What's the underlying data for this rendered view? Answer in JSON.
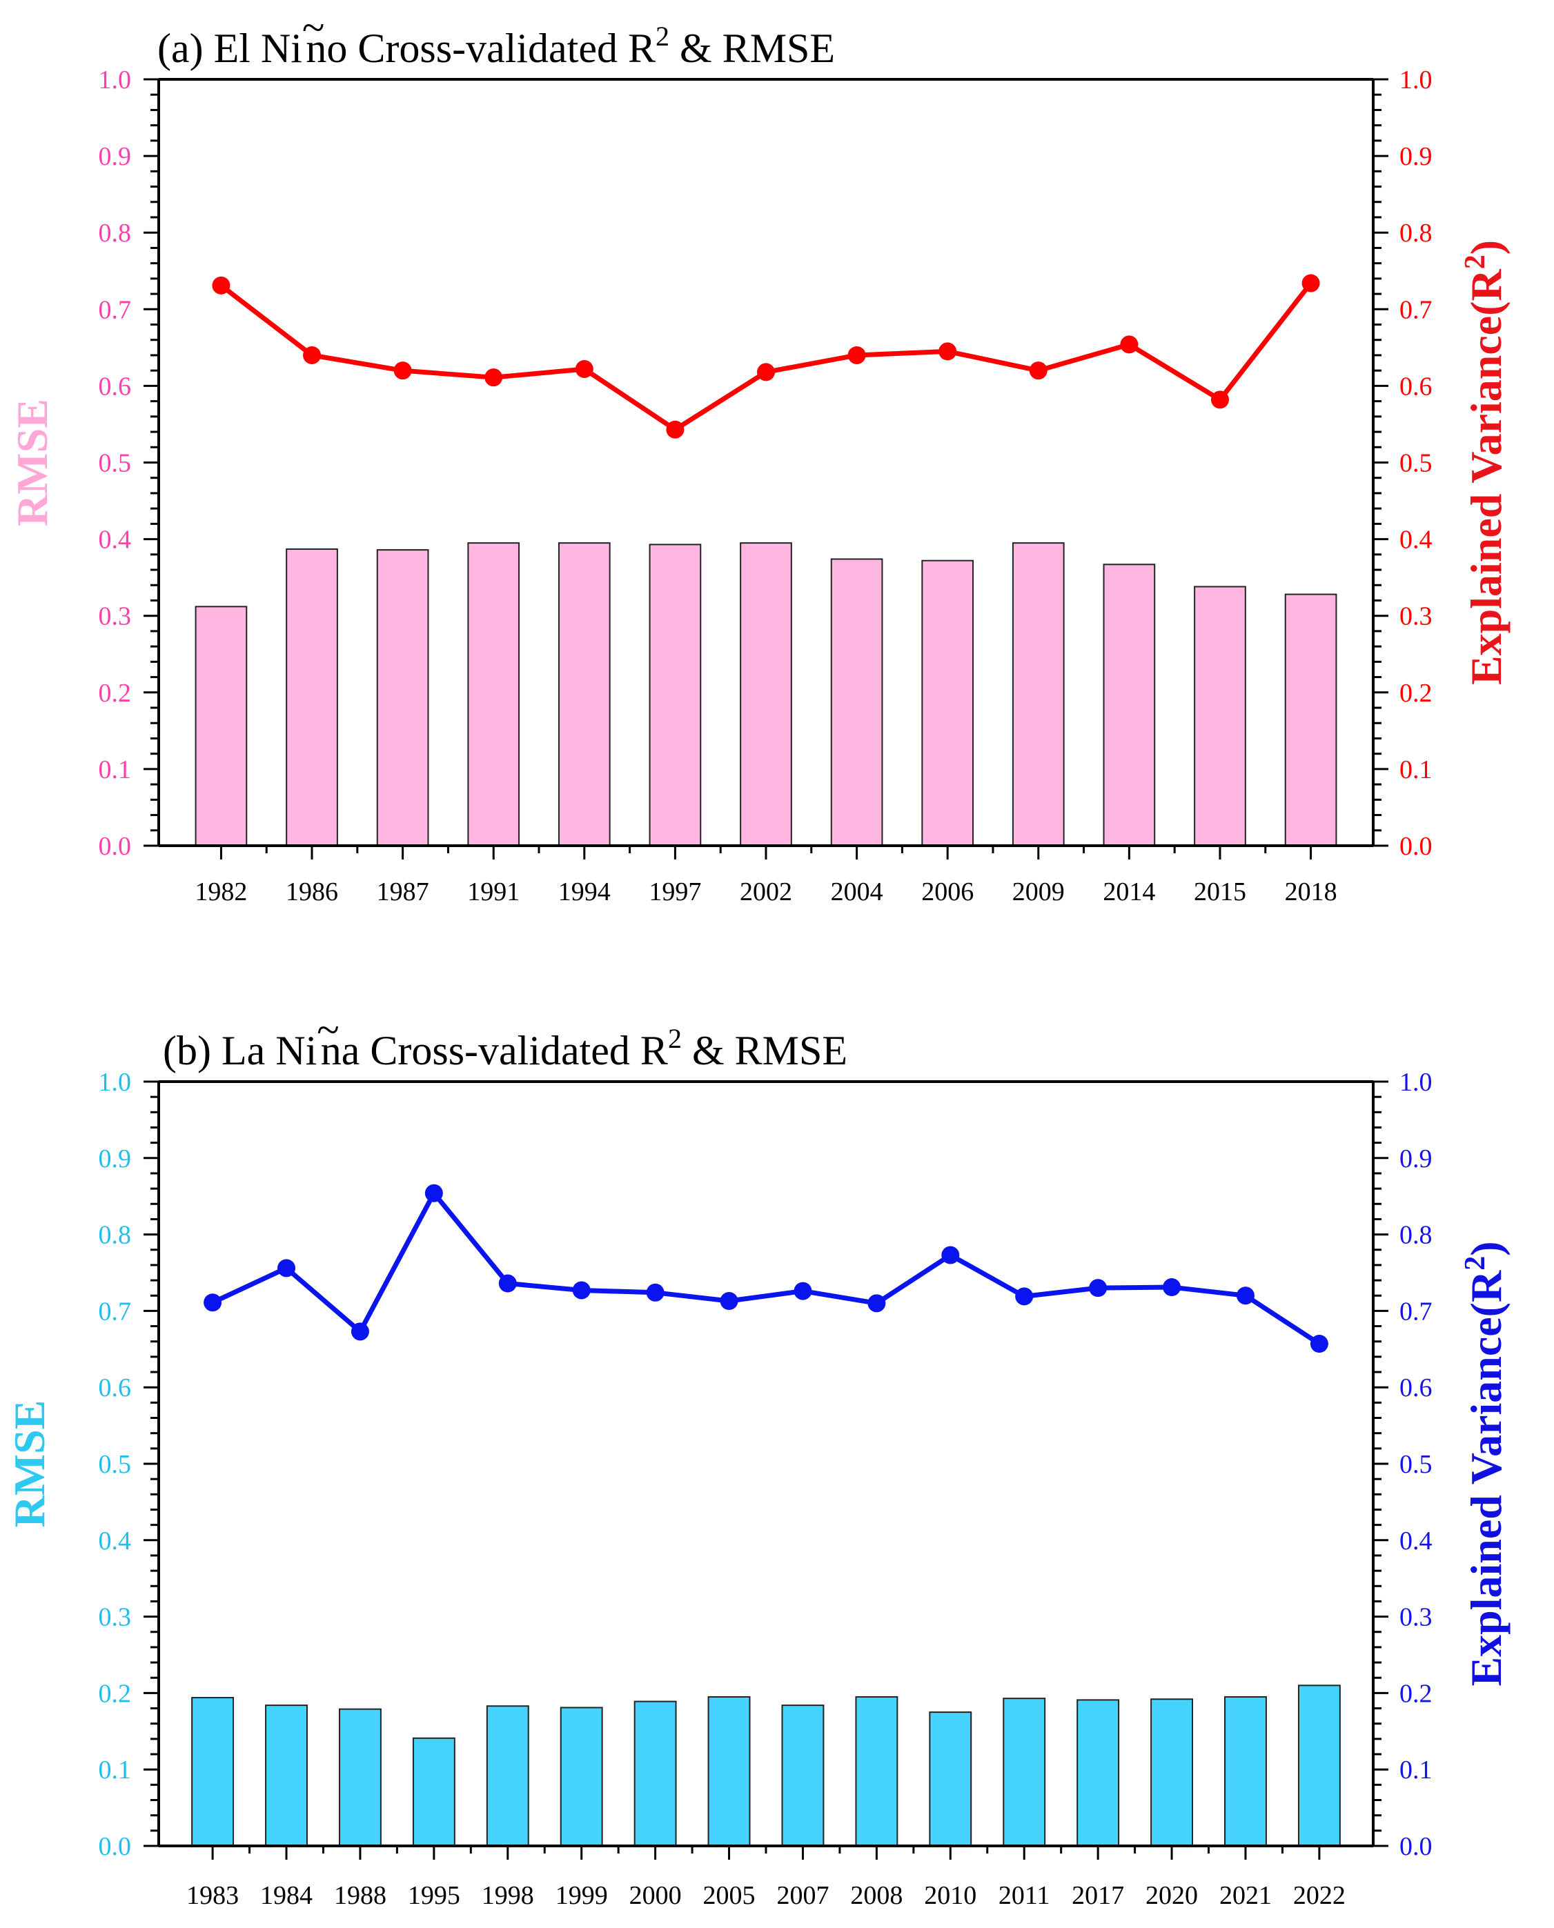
{
  "chart_data": [
    {
      "type": "bar+line",
      "panel": "a",
      "title": "(a) El Niño Cross-validated R² & RMSE",
      "title_parts": {
        "prefix": "(a) El Ni",
        "tilde": "~",
        "accented_letter": "n",
        "after_accent": "o Cross-validated R",
        "superscript": "2",
        "suffix": " & RMSE"
      },
      "categories": [
        "1982",
        "1986",
        "1987",
        "1991",
        "1994",
        "1997",
        "2002",
        "2004",
        "2006",
        "2009",
        "2014",
        "2015",
        "2018"
      ],
      "series": [
        {
          "name": "RMSE",
          "type": "bar",
          "axis": "left",
          "values": [
            0.312,
            0.387,
            0.386,
            0.395,
            0.395,
            0.393,
            0.395,
            0.374,
            0.372,
            0.395,
            0.367,
            0.338,
            0.328
          ]
        },
        {
          "name": "Explained Variance(R²)",
          "type": "line",
          "axis": "right",
          "values": [
            0.731,
            0.64,
            0.62,
            0.611,
            0.622,
            0.543,
            0.618,
            0.64,
            0.645,
            0.62,
            0.654,
            0.582,
            0.734
          ]
        }
      ],
      "ylabel_left": "RMSE",
      "ylabel_right": "Explained Variance(R",
      "ylabel_right_sup": "2",
      "ylabel_right_close": ")",
      "ylim": [
        0,
        1
      ],
      "yticks": [
        "0.0",
        "0.1",
        "0.2",
        "0.3",
        "0.4",
        "0.5",
        "0.6",
        "0.7",
        "0.8",
        "0.9",
        "1.0"
      ],
      "colors": {
        "bar": "#ffb6e1",
        "line": "#ff0000",
        "left_axis_text": "#ff3fa9",
        "right_axis_text": "#ff0000",
        "left_title": "#ffa8d8",
        "right_title": "#e8141a"
      }
    },
    {
      "type": "bar+line",
      "panel": "b",
      "title": "(b) La Niña Cross-validated R² & RMSE",
      "title_parts": {
        "prefix": "(b) La Ni",
        "tilde": "~",
        "accented_letter": "n",
        "after_accent": "a Cross-validated R",
        "superscript": "2",
        "suffix": " & RMSE"
      },
      "categories": [
        "1983",
        "1984",
        "1988",
        "1995",
        "1998",
        "1999",
        "2000",
        "2005",
        "2007",
        "2008",
        "2010",
        "2011",
        "2017",
        "2020",
        "2021",
        "2022"
      ],
      "series": [
        {
          "name": "RMSE",
          "type": "bar",
          "axis": "left",
          "values": [
            0.194,
            0.184,
            0.179,
            0.141,
            0.183,
            0.181,
            0.189,
            0.195,
            0.184,
            0.195,
            0.175,
            0.193,
            0.191,
            0.192,
            0.195,
            0.21
          ]
        },
        {
          "name": "Explained Variance(R²)",
          "type": "line",
          "axis": "right",
          "values": [
            0.711,
            0.756,
            0.673,
            0.854,
            0.736,
            0.727,
            0.724,
            0.713,
            0.726,
            0.71,
            0.773,
            0.719,
            0.73,
            0.731,
            0.72,
            0.657
          ]
        }
      ],
      "ylabel_left": "RMSE",
      "ylabel_right": "Explained Variance(R",
      "ylabel_right_sup": "2",
      "ylabel_right_close": ")",
      "ylim": [
        0,
        1
      ],
      "yticks": [
        "0.0",
        "0.1",
        "0.2",
        "0.3",
        "0.4",
        "0.5",
        "0.6",
        "0.7",
        "0.8",
        "0.9",
        "1.0"
      ],
      "colors": {
        "bar": "#47d3ff",
        "line": "#0a14ee",
        "left_axis_text": "#1ebfee",
        "right_axis_text": "#1414e6",
        "left_title": "#2ec8f0",
        "right_title": "#1010e0"
      }
    }
  ]
}
